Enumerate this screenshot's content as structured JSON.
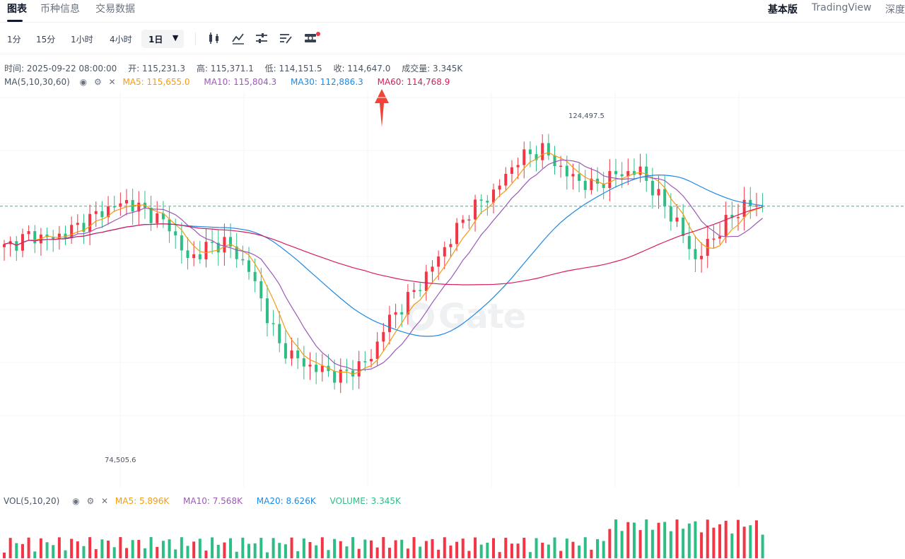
{
  "tabs": {
    "chart": "图表",
    "coin_info": "币种信息",
    "trade_data": "交易数据"
  },
  "view_modes": {
    "basic": "基本版",
    "tradingview": "TradingView",
    "depth": "深度"
  },
  "timeframes": {
    "tf1": "1分",
    "tf2": "15分",
    "tf3": "1小时",
    "tf4": "4小时",
    "tf5": "1日",
    "caret": "▼"
  },
  "toolbar_icons": [
    "candle-type-icon",
    "indicator-icon",
    "settings-sliders-icon",
    "drawing-tools-icon",
    "compare-icon"
  ],
  "ohlc": {
    "time": "时间: 2025-09-22 08:00:00",
    "open": "开: 115,231.3",
    "high": "高: 115,371.1",
    "low": "低: 114,151.5",
    "close": "收: 114,647.0",
    "volume": "成交量: 3.345K"
  },
  "ma_legend": {
    "label": "MA(5,10,30,60)",
    "ma5": "MA5: 115,655.0",
    "ma10": "MA10: 115,804.3",
    "ma30": "MA30: 112,886.3",
    "ma60": "MA60: 114,768.9"
  },
  "vol_legend": {
    "label": "VOL(5,10,20)",
    "ma5": "MA5: 5.896K",
    "ma10": "MA10: 7.568K",
    "ma20": "MA20: 8.626K",
    "volume": "VOLUME: 3.345K"
  },
  "annotations": {
    "high": "124,497.5",
    "low": "74,505.6"
  },
  "watermark": "Gate",
  "colors": {
    "up": "#f23645",
    "down": "#2ebd85",
    "ma5": "#f39c12",
    "ma10": "#9b59b6",
    "ma30": "#1e88e5",
    "ma60": "#d81b60",
    "vol_label": "#2ebd85",
    "arrow": "#f04438"
  },
  "chart_data": {
    "type": "candlestick",
    "price_range": [
      70000,
      130000
    ],
    "anchors": [
      [
        0,
        108000
      ],
      [
        4,
        110000
      ],
      [
        8,
        109500
      ],
      [
        12,
        111500
      ],
      [
        16,
        114000
      ],
      [
        20,
        115500
      ],
      [
        24,
        113500
      ],
      [
        27,
        111500
      ],
      [
        30,
        106000
      ],
      [
        33,
        108000
      ],
      [
        36,
        109000
      ],
      [
        40,
        104500
      ],
      [
        45,
        92000
      ],
      [
        49,
        89000
      ],
      [
        55,
        87000
      ],
      [
        60,
        90000
      ],
      [
        62,
        95000
      ],
      [
        68,
        102000
      ],
      [
        72,
        108000
      ],
      [
        76,
        114000
      ],
      [
        80,
        117000
      ],
      [
        84,
        122500
      ],
      [
        88,
        124000
      ],
      [
        92,
        120000
      ],
      [
        96,
        118000
      ],
      [
        100,
        120000
      ],
      [
        104,
        120500
      ],
      [
        110,
        112000
      ],
      [
        113,
        106000
      ],
      [
        117,
        111000
      ],
      [
        121,
        115000
      ],
      [
        124,
        114800
      ]
    ],
    "volume_scale": 30
  }
}
